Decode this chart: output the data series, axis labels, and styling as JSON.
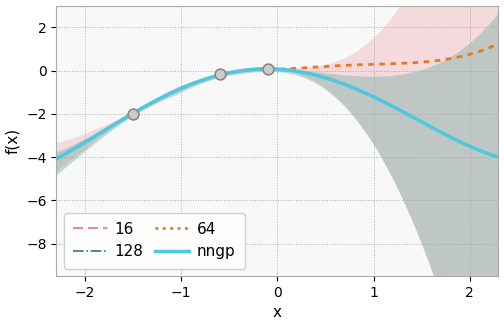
{
  "xlabel": "x",
  "ylabel": "f(x)",
  "xlim": [
    -2.3,
    2.3
  ],
  "ylim": [
    -9.5,
    3.0
  ],
  "xticks": [
    -2,
    -1,
    0,
    1,
    2
  ],
  "yticks": [
    -8,
    -6,
    -4,
    -2,
    0,
    2
  ],
  "background_color": "#ffffff",
  "plot_bg_color": "#f8f8f8",
  "training_points_x": [
    -1.5,
    -0.6,
    -0.1
  ],
  "training_points_y": [
    -2.0,
    -0.15,
    0.05
  ],
  "nngp_color": "#4dc8e0",
  "color_16": "#e8707a",
  "color_64": "#e87820",
  "color_128": "#2a8060",
  "shade_nngp_color": "#8ab5ae",
  "shade_16_color": "#e8707a",
  "legend_fontsize": 11,
  "axis_fontsize": 11
}
